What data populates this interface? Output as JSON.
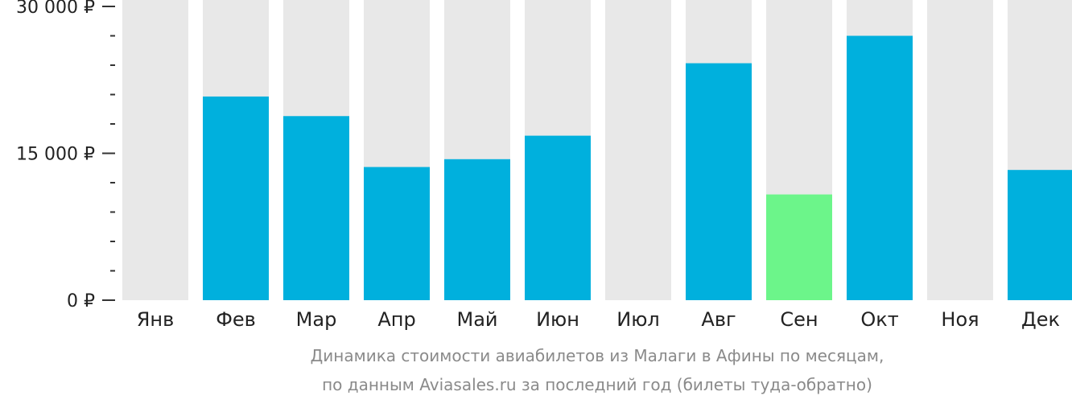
{
  "chart_data": {
    "type": "bar",
    "categories": [
      "Янв",
      "Фев",
      "Мар",
      "Апр",
      "Май",
      "Июн",
      "Июл",
      "Авг",
      "Сен",
      "Окт",
      "Ноя",
      "Дек"
    ],
    "values": [
      null,
      20800,
      18800,
      13600,
      14400,
      16800,
      null,
      24200,
      10800,
      27000,
      null,
      13300
    ],
    "ylim": [
      0,
      30000
    ],
    "yticks": [
      {
        "value": 30000,
        "label": "30 000 ₽"
      },
      {
        "value": 15000,
        "label": "15 000 ₽"
      },
      {
        "value": 0,
        "label": "0 ₽"
      }
    ],
    "minor_tick_step": 3000,
    "highlight_index": 8,
    "grid": false,
    "colors": {
      "bar": "#00B0DD",
      "highlight": "#6CF58A",
      "background_bar": "#E8E8E8"
    }
  },
  "caption": {
    "line1": "Динамика стоимости авиабилетов из Малаги в Афины по месяцам,",
    "line2": "по данным Aviasales.ru за последний год (билеты туда-обратно)"
  }
}
